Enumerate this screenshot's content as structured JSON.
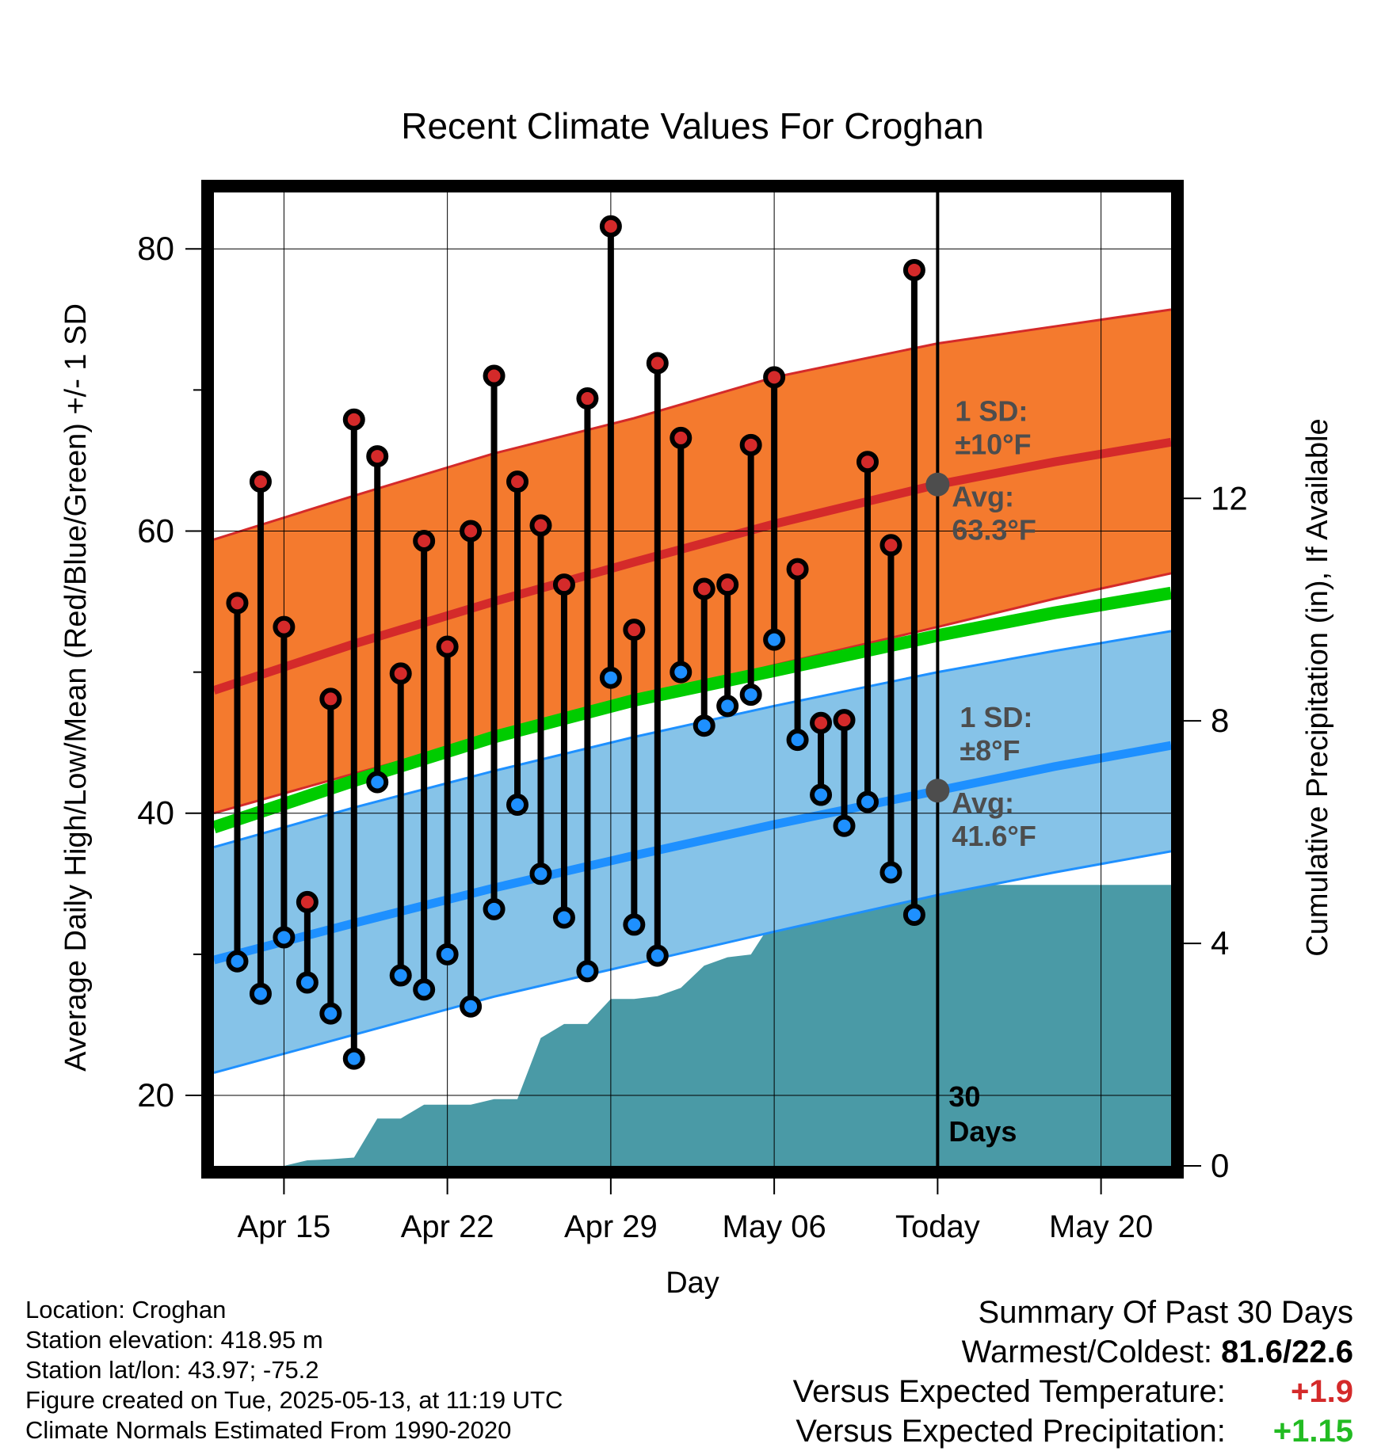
{
  "chart_data": {
    "type": "line",
    "title": "Recent Climate Values For Croghan",
    "xlabel": "Day",
    "ylabel": "Average Daily High/Low/Mean (Red/Blue/Green) +/- 1 SD",
    "y2label": "Cumulative Precipitation (in), If Available",
    "x_tick_labels": [
      "Apr 15",
      "Apr 22",
      "Apr 29",
      "May 06",
      "Today",
      "May 20"
    ],
    "x_tick_dates": [
      "2025-04-15",
      "2025-04-22",
      "2025-04-29",
      "2025-05-06",
      "2025-05-13",
      "2025-05-20"
    ],
    "xlim": [
      "2025-04-12",
      "2025-05-23"
    ],
    "ylim": [
      15,
      84
    ],
    "y_ticks": [
      20,
      40,
      60,
      80
    ],
    "y2lim": [
      0,
      17.5
    ],
    "y2_ticks": [
      0,
      4,
      8,
      12
    ],
    "grid": true,
    "today_date": "2025-05-13",
    "days_label": [
      "30",
      "Days"
    ],
    "normals": {
      "dates": [
        "2025-04-12",
        "2025-04-18",
        "2025-04-24",
        "2025-04-30",
        "2025-05-06",
        "2025-05-13",
        "2025-05-18",
        "2025-05-23"
      ],
      "avg_high": [
        48.7,
        52.0,
        55.0,
        57.8,
        60.5,
        63.3,
        64.9,
        66.3
      ],
      "high_sd_upper": [
        59.4,
        62.5,
        65.5,
        68.0,
        70.9,
        73.3,
        74.5,
        75.7
      ],
      "high_sd_lower": [
        40.0,
        42.8,
        45.5,
        48.0,
        50.5,
        53.2,
        55.2,
        57.0
      ],
      "avg_mean": [
        39.0,
        42.3,
        45.4,
        48.0,
        50.1,
        52.6,
        54.2,
        55.6
      ],
      "avg_low": [
        29.6,
        32.2,
        34.7,
        37.0,
        39.2,
        41.6,
        43.3,
        44.8
      ],
      "low_sd_upper": [
        37.6,
        40.4,
        43.0,
        45.4,
        47.6,
        50.0,
        51.5,
        52.9
      ],
      "low_sd_lower": [
        21.6,
        24.3,
        27.0,
        29.3,
        31.6,
        34.2,
        35.8,
        37.3
      ]
    },
    "high_sd_label": [
      "1 SD:",
      "±10°F"
    ],
    "high_avg_label": [
      "Avg:",
      "63.3°F"
    ],
    "low_sd_label": [
      "1 SD:",
      "±8°F"
    ],
    "low_avg_label": [
      "Avg:",
      "41.6°F"
    ],
    "avg_high_today": 63.3,
    "avg_low_today": 41.6,
    "series": [
      {
        "name": "High",
        "dates": [
          "2025-04-13",
          "2025-04-14",
          "2025-04-15",
          "2025-04-16",
          "2025-04-17",
          "2025-04-18",
          "2025-04-19",
          "2025-04-20",
          "2025-04-21",
          "2025-04-22",
          "2025-04-23",
          "2025-04-24",
          "2025-04-25",
          "2025-04-26",
          "2025-04-27",
          "2025-04-28",
          "2025-04-29",
          "2025-04-30",
          "2025-05-01",
          "2025-05-02",
          "2025-05-03",
          "2025-05-04",
          "2025-05-05",
          "2025-05-06",
          "2025-05-07",
          "2025-05-08",
          "2025-05-09",
          "2025-05-10",
          "2025-05-11",
          "2025-05-12"
        ],
        "values": [
          54.9,
          63.5,
          53.2,
          33.7,
          48.1,
          67.9,
          65.3,
          49.9,
          59.3,
          51.8,
          60.0,
          71.0,
          63.5,
          60.4,
          56.2,
          69.4,
          81.6,
          53.0,
          71.9,
          66.6,
          55.9,
          56.2,
          66.1,
          70.9,
          57.3,
          46.4,
          46.6,
          64.9,
          59.0,
          78.5
        ]
      },
      {
        "name": "Low",
        "dates": [
          "2025-04-13",
          "2025-04-14",
          "2025-04-15",
          "2025-04-16",
          "2025-04-17",
          "2025-04-18",
          "2025-04-19",
          "2025-04-20",
          "2025-04-21",
          "2025-04-22",
          "2025-04-23",
          "2025-04-24",
          "2025-04-25",
          "2025-04-26",
          "2025-04-27",
          "2025-04-28",
          "2025-04-29",
          "2025-04-30",
          "2025-05-01",
          "2025-05-02",
          "2025-05-03",
          "2025-05-04",
          "2025-05-05",
          "2025-05-06",
          "2025-05-07",
          "2025-05-08",
          "2025-05-09",
          "2025-05-10",
          "2025-05-11",
          "2025-05-12"
        ],
        "values": [
          29.5,
          27.2,
          31.2,
          28.0,
          25.8,
          22.6,
          42.2,
          28.5,
          27.5,
          30.0,
          26.3,
          33.2,
          40.6,
          35.7,
          32.6,
          28.8,
          49.6,
          32.1,
          29.9,
          50.0,
          46.2,
          47.6,
          48.4,
          52.3,
          45.2,
          41.3,
          39.1,
          40.8,
          35.8,
          32.8
        ]
      },
      {
        "name": "Cumulative Precipitation",
        "dates": [
          "2025-04-12",
          "2025-04-15",
          "2025-04-16",
          "2025-04-17",
          "2025-04-18",
          "2025-04-19",
          "2025-04-20",
          "2025-04-21",
          "2025-04-22",
          "2025-04-23",
          "2025-04-24",
          "2025-04-25",
          "2025-04-26",
          "2025-04-27",
          "2025-04-28",
          "2025-04-29",
          "2025-04-30",
          "2025-05-01",
          "2025-05-02",
          "2025-05-03",
          "2025-05-04",
          "2025-05-05",
          "2025-05-06",
          "2025-05-07",
          "2025-05-08",
          "2025-05-09",
          "2025-05-10",
          "2025-05-11",
          "2025-05-12",
          "2025-05-13",
          "2025-05-23"
        ],
        "values": [
          0,
          0,
          0.1,
          0.12,
          0.15,
          0.85,
          0.85,
          1.1,
          1.1,
          1.1,
          1.2,
          1.2,
          2.3,
          2.55,
          2.55,
          3.0,
          3.0,
          3.05,
          3.2,
          3.6,
          3.75,
          3.8,
          4.45,
          4.6,
          4.6,
          4.9,
          5.05,
          5.05,
          5.05,
          5.05,
          5.05
        ]
      }
    ]
  },
  "colors": {
    "high_band": "#f47a2e",
    "high_line": "#d42a2a",
    "low_band": "#86c3e8",
    "low_line": "#1e90ff",
    "mean_line": "#00cc00",
    "precip": "#4a9aa6",
    "high_marker": "#d42a2a",
    "low_marker": "#1e90ff",
    "annotation": "#4d4d4d"
  },
  "info": {
    "location": "Location: Croghan",
    "elevation": "Station elevation: 418.95 m",
    "latlon": "Station lat/lon: 43.97; -75.2",
    "created": "Figure created on Tue, 2025-05-13, at 11:19 UTC",
    "normals": "Climate Normals Estimated From 1990-2020"
  },
  "summary": {
    "title": "Summary Of Past 30 Days",
    "warm_cold_label": "Warmest/Coldest:",
    "warm_cold_value": "81.6/22.6",
    "temp_label": "Versus Expected Temperature:",
    "temp_value": "+1.9",
    "temp_color": "#d42a2a",
    "precip_label": "Versus Expected Precipitation:",
    "precip_value": "+1.15",
    "precip_color": "#22bb22"
  }
}
